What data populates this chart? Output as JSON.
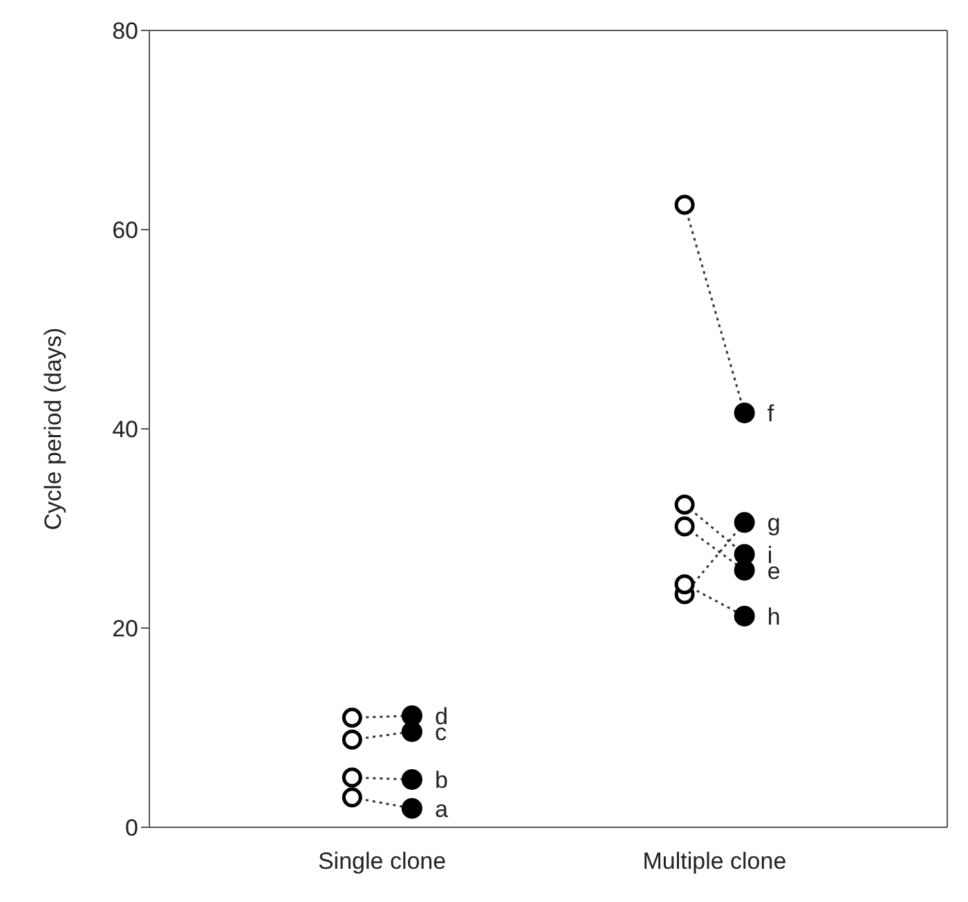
{
  "chart_data": {
    "type": "scatter",
    "categories": [
      "Single clone",
      "Multiple clone"
    ],
    "ylabel": "Cycle period (days)",
    "ylim": [
      0,
      80
    ],
    "yticks": [
      0,
      20,
      40,
      60,
      80
    ],
    "line_style": "dotted",
    "marker": "circle",
    "series": [
      {
        "color": "#000000",
        "x": [
          "Single clone",
          "Single clone",
          "Single clone",
          "Single clone",
          "Multiple clone",
          "Multiple clone",
          "Multiple clone",
          "Multiple clone",
          "Multiple clone"
        ],
        "values": [
          3.0,
          5.0,
          8.8,
          11.0,
          23.4,
          32.4,
          30.2,
          24.4,
          62.5
        ]
      },
      {
        "color": "#000000",
        "x": [
          "Single clone",
          "Single clone",
          "Single clone",
          "Single clone",
          "Multiple clone",
          "Multiple clone",
          "Multiple clone",
          "Multiple clone",
          "Multiple clone"
        ],
        "values": [
          1.9,
          4.8,
          9.6,
          11.2,
          30.6,
          27.4,
          25.8,
          21.2,
          41.6
        ],
        "value_labels": [
          "a",
          "b",
          "c",
          "d",
          "g",
          "i",
          "e",
          "h",
          "f"
        ]
      }
    ]
  }
}
